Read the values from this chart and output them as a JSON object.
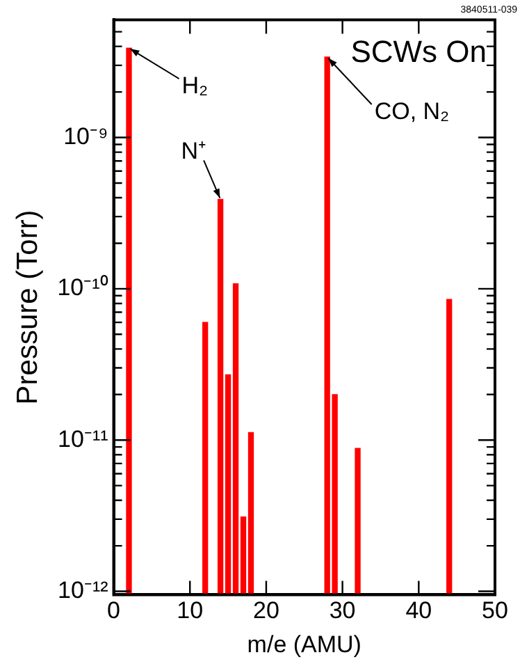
{
  "chart_data": {
    "type": "bar",
    "xlabel": "m/e (AMU)",
    "ylabel": "Pressure (Torr)",
    "x": [
      2,
      12,
      14,
      15,
      16,
      17,
      18,
      28,
      29,
      32,
      44
    ],
    "values": [
      3.9e-09,
      6e-11,
      3.9e-10,
      2.7e-11,
      1.08e-10,
      3.1e-12,
      1.12e-11,
      3.4e-09,
      2e-11,
      8.8e-12,
      8.5e-11
    ],
    "color": "#ff0000",
    "log": "y",
    "grid": false,
    "legend": false,
    "xlim": [
      0,
      50
    ],
    "xticks": [
      0,
      10,
      20,
      30,
      40,
      50
    ],
    "ylim": [
      9.5e-13,
      6e-09
    ],
    "yticks": [
      {
        "value": 1e-12,
        "label": "10⁻¹²"
      },
      {
        "value": 2e-12,
        "label": null
      },
      {
        "value": 3e-12,
        "label": null
      },
      {
        "value": 4e-12,
        "label": null
      },
      {
        "value": 5e-12,
        "label": null
      },
      {
        "value": 6e-12,
        "label": null
      },
      {
        "value": 7e-12,
        "label": null
      },
      {
        "value": 8e-12,
        "label": null
      },
      {
        "value": 9e-12,
        "label": null
      },
      {
        "value": 1e-11,
        "label": "10⁻¹¹"
      },
      {
        "value": 2e-11,
        "label": null
      },
      {
        "value": 3e-11,
        "label": null
      },
      {
        "value": 4e-11,
        "label": null
      },
      {
        "value": 5e-11,
        "label": null
      },
      {
        "value": 6e-11,
        "label": null
      },
      {
        "value": 7e-11,
        "label": null
      },
      {
        "value": 8e-11,
        "label": null
      },
      {
        "value": 9e-11,
        "label": null
      },
      {
        "value": 1e-10,
        "label": "10⁻¹⁰"
      },
      {
        "value": 2e-10,
        "label": null
      },
      {
        "value": 3e-10,
        "label": null
      },
      {
        "value": 4e-10,
        "label": null
      },
      {
        "value": 5e-10,
        "label": null
      },
      {
        "value": 6e-10,
        "label": null
      },
      {
        "value": 7e-10,
        "label": null
      },
      {
        "value": 8e-10,
        "label": null
      },
      {
        "value": 9e-10,
        "label": null
      },
      {
        "value": 1e-09,
        "label": "10⁻⁹"
      },
      {
        "value": 2e-09,
        "label": null
      },
      {
        "value": 3e-09,
        "label": null
      },
      {
        "value": 4e-09,
        "label": null
      },
      {
        "value": 5e-09,
        "label": null
      }
    ],
    "annotations": [
      {
        "text": "H₂",
        "x": 2,
        "y": 3.9e-09
      },
      {
        "text": "N⁺",
        "x": 14,
        "y": 3.9e-10
      },
      {
        "text": "CO, N₂",
        "x": 28,
        "y": 3.4e-09
      },
      "SCWs On",
      "3840511-039"
    ]
  }
}
